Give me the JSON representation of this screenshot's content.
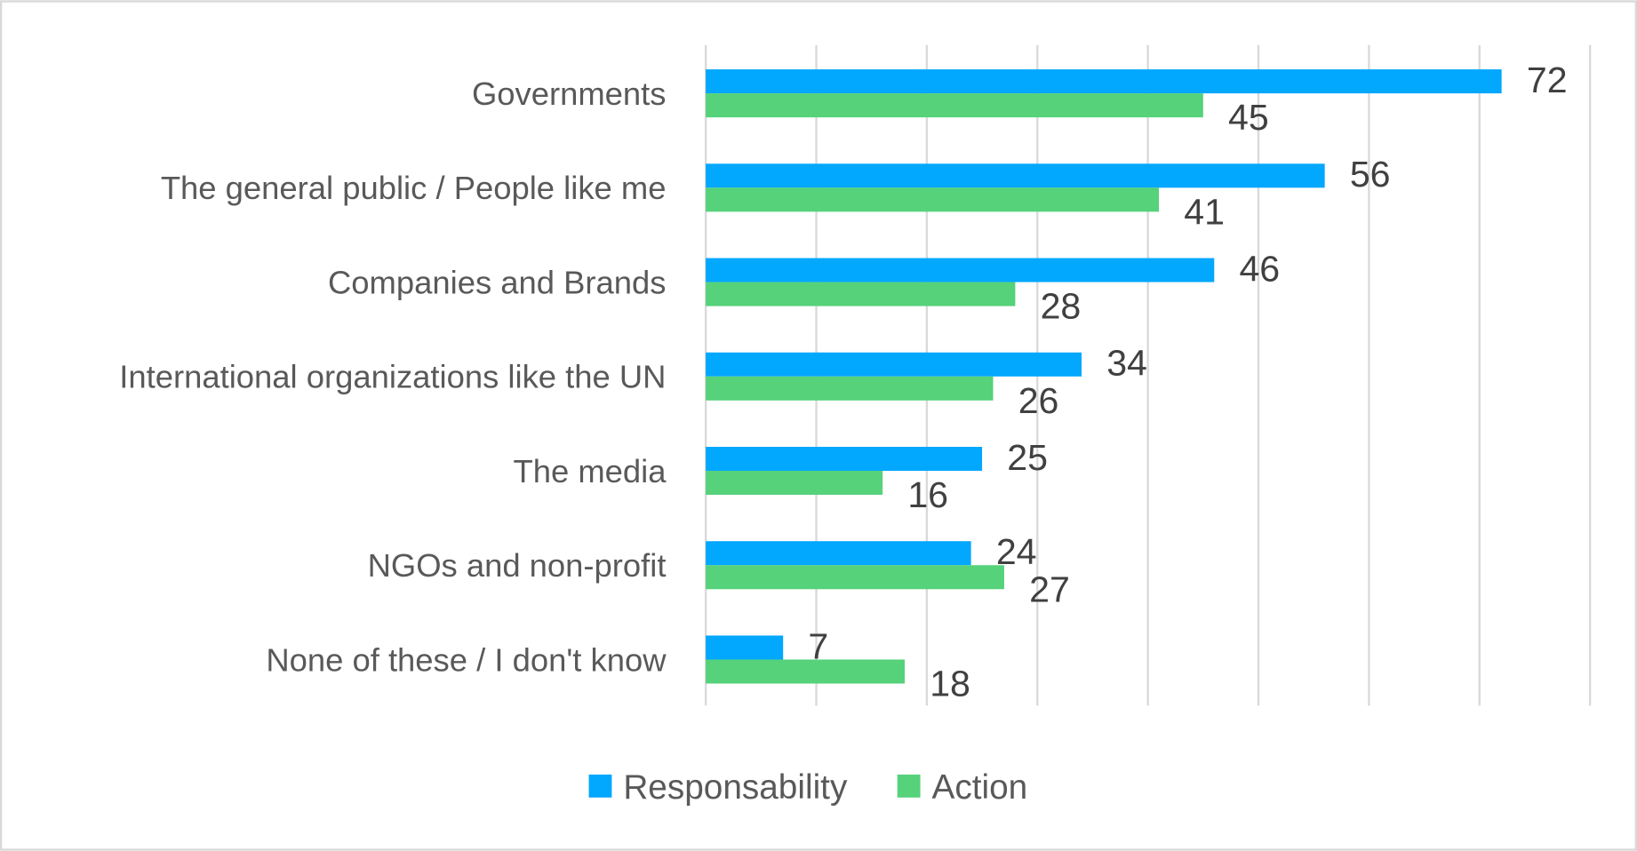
{
  "chart_data": {
    "type": "bar",
    "orientation": "horizontal",
    "title": "",
    "xlabel": "",
    "ylabel": "",
    "xlim": [
      0,
      80
    ],
    "grid": true,
    "tick_labels_shown": false,
    "categories": [
      "Governments",
      "The general public / People like me",
      "Companies and Brands",
      "International organizations like the UN",
      "The media",
      "NGOs and non-profit",
      "None of these / I don't know"
    ],
    "series": [
      {
        "name": "Responsability",
        "color": "#02A7FE",
        "values": [
          72,
          56,
          46,
          34,
          25,
          24,
          7
        ]
      },
      {
        "name": "Action",
        "color": "#55D27A",
        "values": [
          45,
          41,
          28,
          26,
          16,
          27,
          18
        ]
      }
    ],
    "legend_position": "bottom"
  }
}
